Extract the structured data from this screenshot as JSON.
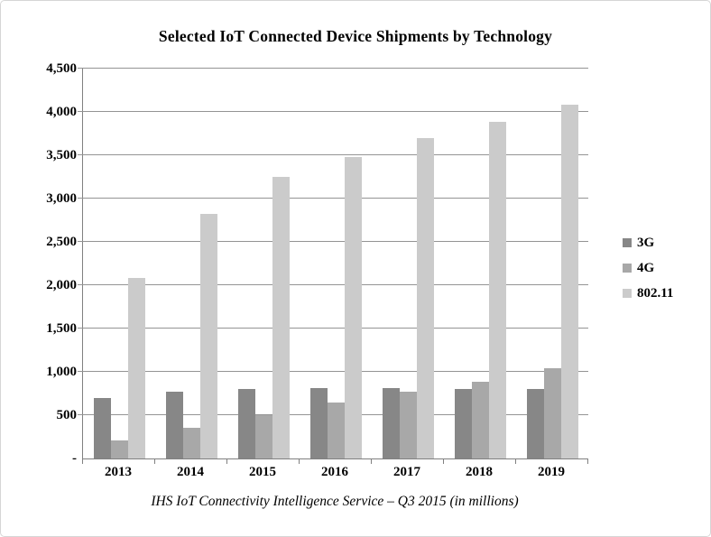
{
  "title": "Selected IoT Connected Device Shipments by Technology",
  "footer": "IHS IoT Connectivity Intelligence Service – Q3 2015 (in millions)",
  "colors": {
    "bar_3g": "#878787",
    "bar_4g": "#a8a8a8",
    "bar_80211": "#cbcbcb",
    "gridline": "#949494",
    "axis": "#808080",
    "frame_border": "#d6d6d6",
    "text": "#000000"
  },
  "chart_data": {
    "type": "bar",
    "title": "Selected IoT Connected Device Shipments by Technology",
    "subtitle": "IHS IoT Connectivity Intelligence Service – Q3 2015 (in millions)",
    "categories": [
      "2013",
      "2014",
      "2015",
      "2016",
      "2017",
      "2018",
      "2019"
    ],
    "series": [
      {
        "name": "3G",
        "color": "#878787",
        "values": [
          700,
          775,
          805,
          815,
          815,
          805,
          805
        ]
      },
      {
        "name": "4G",
        "color": "#a8a8a8",
        "values": [
          205,
          355,
          500,
          645,
          770,
          885,
          1045
        ]
      },
      {
        "name": "802.11",
        "color": "#cbcbcb",
        "values": [
          2080,
          2825,
          3255,
          3475,
          3695,
          3885,
          4080
        ]
      }
    ],
    "xlabel": "",
    "ylabel": "",
    "ylim": [
      0,
      4500
    ],
    "ytick_interval": 500,
    "ytick_labels": [
      "-",
      "500",
      "1,000",
      "1,500",
      "2,000",
      "2,500",
      "3,000",
      "3,500",
      "4,000",
      "4,500"
    ],
    "grid": true,
    "legend_position": "right"
  }
}
